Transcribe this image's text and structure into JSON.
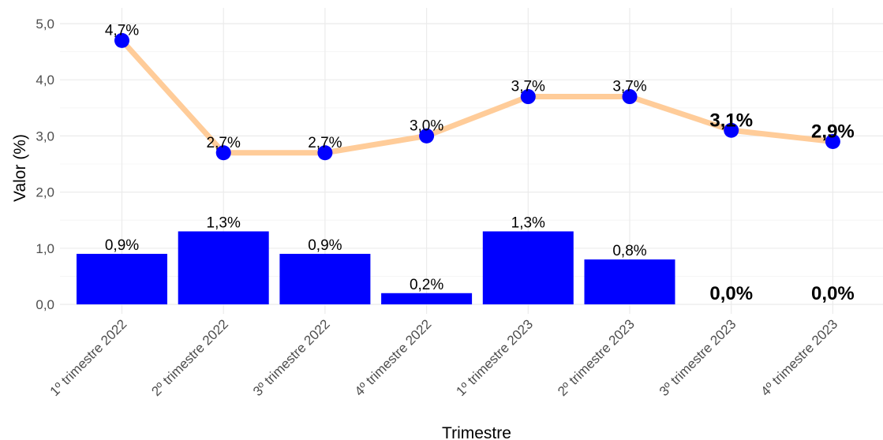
{
  "chart_data": {
    "type": "bar",
    "title": "",
    "xlabel": "Trimestre",
    "ylabel": "Valor (%)",
    "ylim": [
      0,
      5
    ],
    "yticks": [
      "0,0",
      "1,0",
      "2,0",
      "3,0",
      "4,0",
      "5,0"
    ],
    "grid": true,
    "categories": [
      "1º trimestre 2022",
      "2º trimestre 2022",
      "3º trimestre 2022",
      "4º trimestre 2022",
      "1º trimestre 2023",
      "2º trimestre 2023",
      "3º trimestre 2023",
      "4º trimestre 2023"
    ],
    "series": [
      {
        "type": "bar",
        "values": [
          0.9,
          1.3,
          0.9,
          0.2,
          1.3,
          0.8,
          0.0,
          0.0
        ],
        "labels": [
          "0,9%",
          "1,3%",
          "0,9%",
          "0,2%",
          "1,3%",
          "0,8%",
          "0,0%",
          "0,0%"
        ],
        "label_bold": [
          false,
          false,
          false,
          false,
          false,
          false,
          true,
          true
        ],
        "color": "#0000ff"
      },
      {
        "type": "line",
        "values": [
          4.7,
          2.7,
          2.7,
          3.0,
          3.7,
          3.7,
          3.1,
          2.9
        ],
        "labels": [
          "4,7%",
          "2,7%",
          "2,7%",
          "3,0%",
          "3,7%",
          "3,7%",
          "3,1%",
          "2,9%"
        ],
        "label_bold": [
          false,
          false,
          false,
          false,
          false,
          false,
          true,
          true
        ],
        "line_color": "#ffcc99",
        "point_color": "#0000ff"
      }
    ]
  }
}
